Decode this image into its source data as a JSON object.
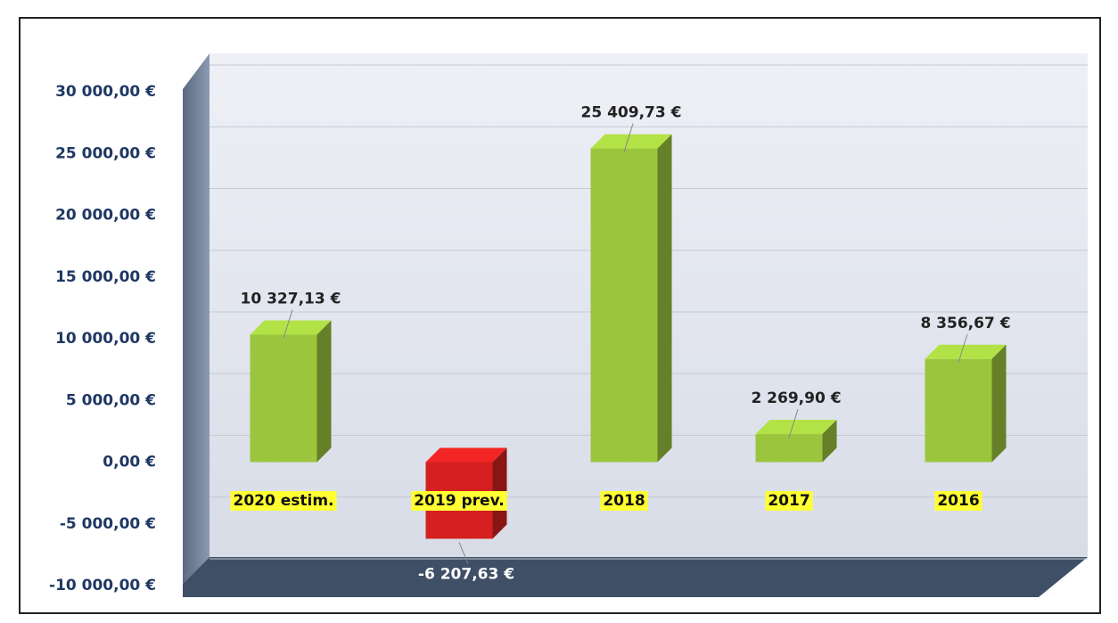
{
  "chart_data": {
    "type": "bar3d",
    "categories": [
      "2020 estim.",
      "2019 prev.",
      "2018",
      "2017",
      "2016"
    ],
    "values": [
      10327.13,
      -6207.63,
      25409.73,
      2269.9,
      8356.67
    ],
    "value_labels": [
      "10 327,13 €",
      "-6 207,63 €",
      "25 409,73 €",
      "2 269,90 €",
      "8 356,67 €"
    ],
    "color": "#9bc53d",
    "negative_color": "#d42020",
    "ylim": [
      -10000,
      30000
    ],
    "yticks": [
      {
        "value": -10000,
        "label": "-10 000,00 €"
      },
      {
        "value": -5000,
        "label": "-5 000,00 €"
      },
      {
        "value": 0,
        "label": "0,00 €"
      },
      {
        "value": 5000,
        "label": "5 000,00 €"
      },
      {
        "value": 10000,
        "label": "10 000,00 €"
      },
      {
        "value": 15000,
        "label": "15 000,00 €"
      },
      {
        "value": 20000,
        "label": "20 000,00 €"
      },
      {
        "value": 25000,
        "label": "25 000,00 €"
      },
      {
        "value": 30000,
        "label": "30 000,00 €"
      }
    ],
    "grid": true
  }
}
